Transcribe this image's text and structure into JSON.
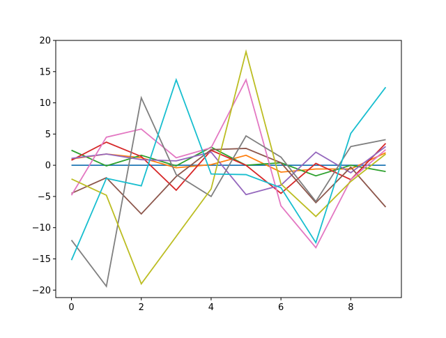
{
  "chart_data": {
    "type": "line",
    "title": "",
    "xlabel": "",
    "ylabel": "",
    "xlim": [
      -0.45,
      9.45
    ],
    "ylim": [
      -21.2,
      20
    ],
    "grid": false,
    "legend": "none",
    "x": [
      0,
      1,
      2,
      3,
      4,
      5,
      6,
      7,
      8,
      9
    ],
    "x_ticks": [
      0,
      2,
      4,
      6,
      8
    ],
    "x_tick_labels": [
      "0",
      "2",
      "4",
      "6",
      "8"
    ],
    "y_ticks": [
      20,
      15,
      10,
      5,
      0,
      -5,
      -10,
      -15,
      -20
    ],
    "y_tick_labels": [
      "20",
      "15",
      "10",
      "5",
      "0",
      "−5",
      "−10",
      "−15",
      "−20"
    ],
    "series": [
      {
        "color": "#1f77b4",
        "values": [
          0,
          0,
          0,
          0,
          0,
          0,
          0,
          0,
          0,
          0
        ]
      },
      {
        "color": "#ff7f0e",
        "values": [
          1.0,
          1.8,
          1.2,
          -0.4,
          0.1,
          1.6,
          -1.1,
          -0.6,
          -0.6,
          2.0
        ]
      },
      {
        "color": "#2ca02c",
        "values": [
          2.4,
          -0.1,
          1.6,
          -0.1,
          2.9,
          0.0,
          0.4,
          -1.7,
          0.0,
          -1.0
        ]
      },
      {
        "color": "#d62728",
        "values": [
          0.8,
          3.7,
          1.4,
          -4.0,
          2.4,
          0.0,
          -4.5,
          0.3,
          -2.3,
          3.5
        ]
      },
      {
        "color": "#9467bd",
        "values": [
          1.1,
          1.8,
          0.9,
          0.7,
          2.1,
          -4.7,
          -3.2,
          2.1,
          -1.2,
          3.0
        ]
      },
      {
        "color": "#8c564b",
        "values": [
          -4.5,
          -2.0,
          -7.8,
          -1.8,
          2.5,
          2.7,
          0.4,
          -6.0,
          -0.3,
          -6.7
        ]
      },
      {
        "color": "#e377c2",
        "values": [
          -4.8,
          4.5,
          5.8,
          1.2,
          2.8,
          13.7,
          -6.5,
          -13.2,
          -2.3,
          2.5
        ]
      },
      {
        "color": "#7f7f7f",
        "values": [
          -12.0,
          -19.4,
          10.8,
          -1.5,
          -5.0,
          4.7,
          1.3,
          -5.8,
          3.0,
          4.1
        ]
      },
      {
        "color": "#bcbd22",
        "values": [
          -2.2,
          -4.8,
          -19.0,
          -11.4,
          -3.8,
          18.2,
          -3.0,
          -8.2,
          -2.6,
          1.8
        ]
      },
      {
        "color": "#17becf",
        "values": [
          -15.2,
          -2.1,
          -3.3,
          13.7,
          -1.4,
          -1.5,
          -3.6,
          -12.4,
          5.1,
          12.5
        ]
      }
    ]
  }
}
